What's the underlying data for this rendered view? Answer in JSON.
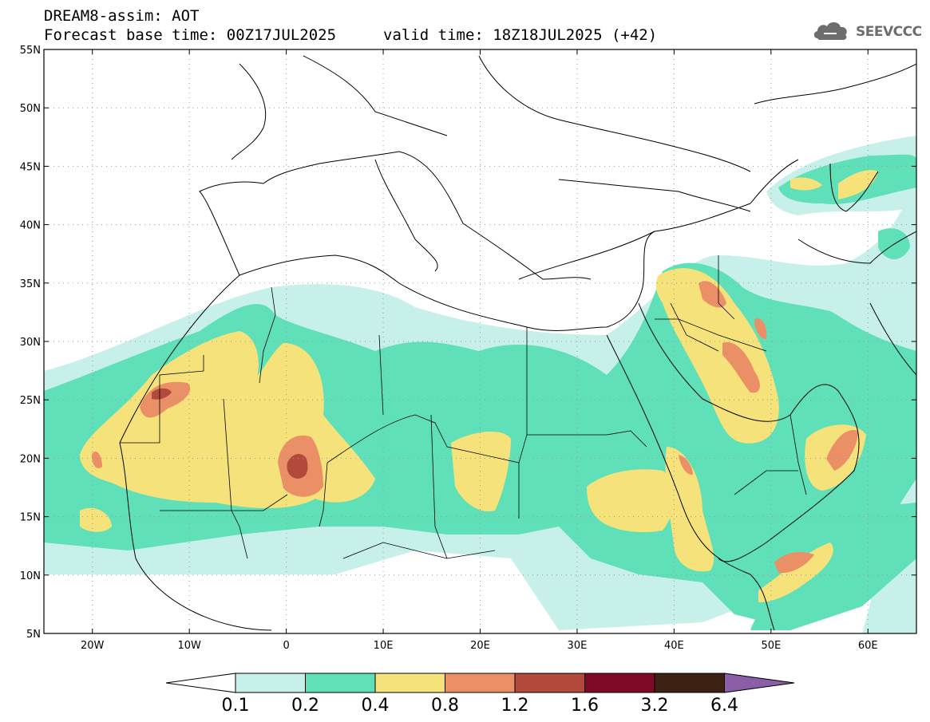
{
  "title": {
    "line1": "DREAM8-assim: AOT",
    "line2_base": "Forecast base time: 00Z17JUL2025",
    "line2_valid": "valid time: 18Z18JUL2025 (+42)"
  },
  "logo": {
    "icon": "cloud-icon",
    "text": "SEEVCCC"
  },
  "map": {
    "lon_range": [
      -25,
      65
    ],
    "lat_range": [
      5,
      55
    ],
    "lat_ticks": [
      "5N",
      "10N",
      "15N",
      "20N",
      "25N",
      "30N",
      "35N",
      "40N",
      "45N",
      "50N",
      "55N"
    ],
    "lon_ticks": [
      "20W",
      "10W",
      "0",
      "10E",
      "20E",
      "30E",
      "40E",
      "50E",
      "60E"
    ],
    "grid": "dotted"
  },
  "colorbar": {
    "levels": [
      "0.1",
      "0.2",
      "0.4",
      "0.8",
      "1.2",
      "1.6",
      "3.2",
      "6.4"
    ],
    "colors": [
      "#c7f0ea",
      "#5fe0b8",
      "#f5e27a",
      "#eb8f66",
      "#b24a3c",
      "#7f0a28",
      "#3d2214",
      "#8a5fa8"
    ],
    "under_color": "#ffffff"
  }
}
